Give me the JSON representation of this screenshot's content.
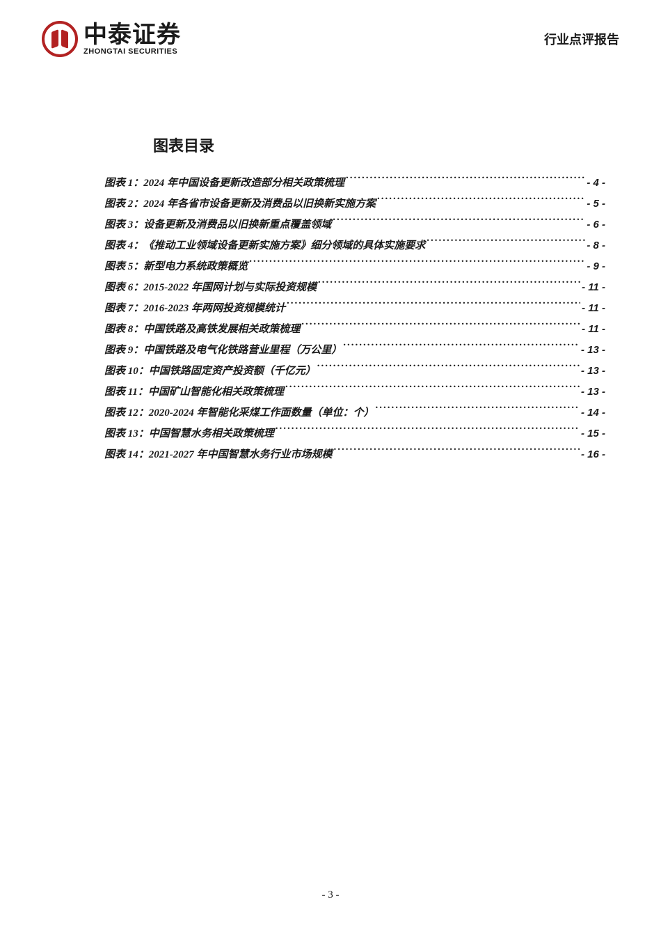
{
  "header": {
    "logo_cn": "中泰证券",
    "logo_en": "ZHONGTAI SECURITIES",
    "report_type": "行业点评报告"
  },
  "toc": {
    "title": "图表目录",
    "entries": [
      {
        "label": "图表 1：2024 年中国设备更新改造部分相关政策梳理",
        "page": "- 4 -"
      },
      {
        "label": "图表 2：2024 年各省市设备更新及消费品以旧换新实施方案",
        "page": "- 5 -"
      },
      {
        "label": "图表 3：设备更新及消费品以旧换新重点覆盖领域",
        "page": "- 6 -"
      },
      {
        "label": "图表 4：《推动工业领域设备更新实施方案》细分领域的具体实施要求",
        "page": "- 8 -"
      },
      {
        "label": "图表 5：新型电力系统政策概览",
        "page": "- 9 -"
      },
      {
        "label": "图表 6：2015-2022 年国网计划与实际投资规模",
        "page": "- 11 -"
      },
      {
        "label": "图表 7：2016-2023 年两网投资规模统计",
        "page": "- 11 -"
      },
      {
        "label": "图表 8：中国铁路及高铁发展相关政策梳理",
        "page": "- 11 -"
      },
      {
        "label": "图表 9：中国铁路及电气化铁路营业里程（万公里）",
        "page": "- 13 -"
      },
      {
        "label": "图表 10：中国铁路固定资产投资额（千亿元）",
        "page": "- 13 -"
      },
      {
        "label": "图表 11：中国矿山智能化相关政策梳理",
        "page": "- 13 -"
      },
      {
        "label": "图表 12：2020-2024 年智能化采煤工作面数量（单位：个）",
        "page": "- 14 -"
      },
      {
        "label": "图表 13：中国智慧水务相关政策梳理",
        "page": "- 15 -"
      },
      {
        "label": "图表 14：2021-2027 年中国智慧水务行业市场规模",
        "page": "- 16 -"
      }
    ]
  },
  "page_number": "- 3 -",
  "colors": {
    "brand_red": "#b22222",
    "text": "#1a1a1a",
    "background": "#ffffff"
  }
}
